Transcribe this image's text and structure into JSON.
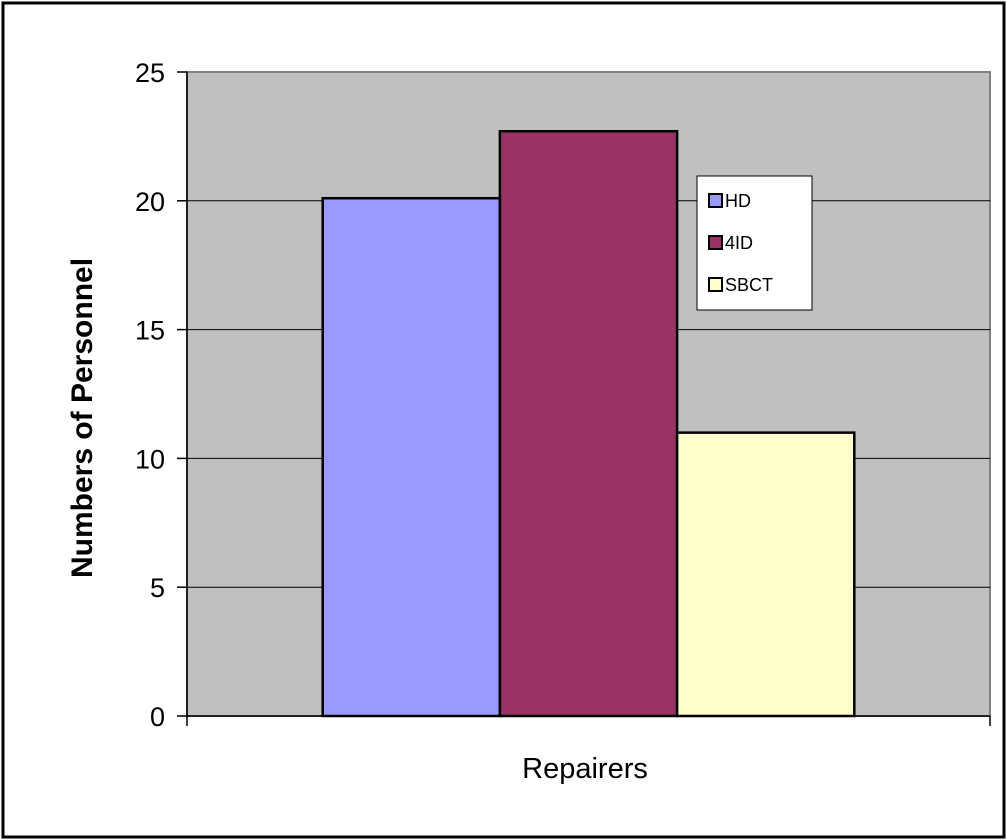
{
  "chart_data": {
    "type": "bar",
    "categories": [
      "Repairers"
    ],
    "series": [
      {
        "name": "HD",
        "values": [
          20.1
        ],
        "color": "#9999ff"
      },
      {
        "name": "4ID",
        "values": [
          22.7
        ],
        "color": "#993366"
      },
      {
        "name": "SBCT",
        "values": [
          11
        ],
        "color": "#ffffcc"
      }
    ],
    "title": "",
    "xlabel": "Repairers",
    "ylabel": "Numbers of Personnel",
    "ylim": [
      0,
      25
    ],
    "yticks": [
      "0",
      "5",
      "10",
      "15",
      "20",
      "25"
    ],
    "grid": true,
    "legend_position": "right",
    "plot_background": "#c0c0c0"
  }
}
